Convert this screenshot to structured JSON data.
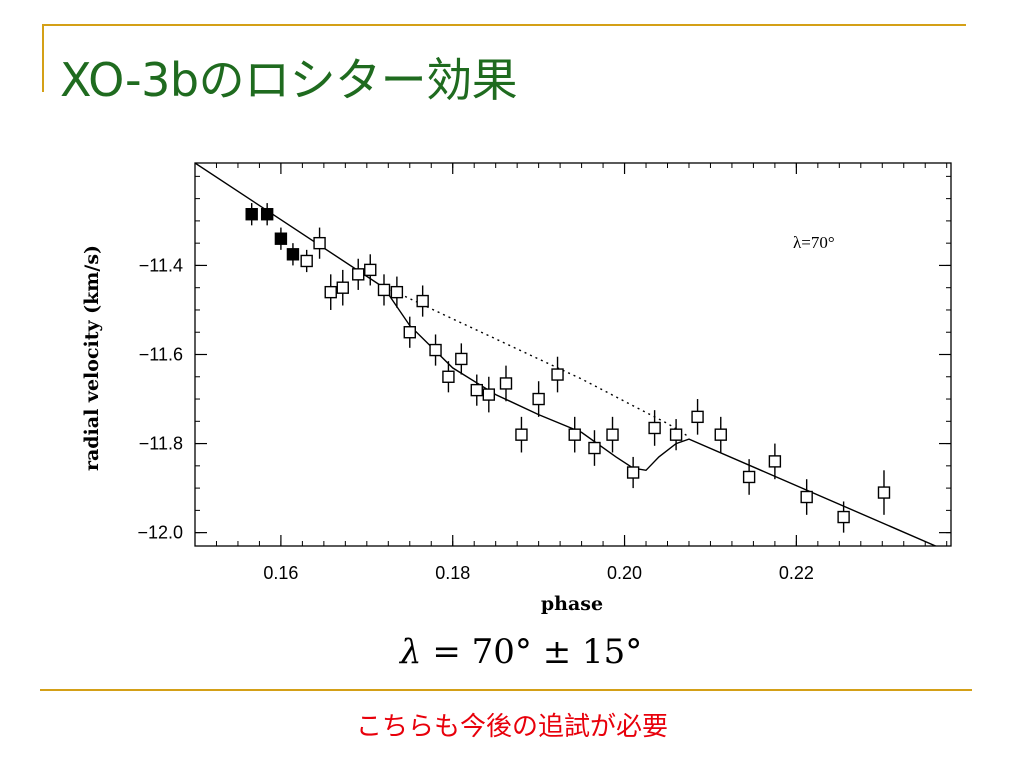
{
  "slide": {
    "title": "XO-3bのロシター効果",
    "equation": {
      "symbol": "λ",
      "text": "= 70° ± 15°"
    },
    "note": "こちらも今後の追試が必要"
  },
  "colors": {
    "title": "#1f6b1f",
    "rule": "#d4a017",
    "note": "#e8000b"
  },
  "chart_data": {
    "type": "scatter",
    "xlabel": "phase",
    "ylabel": "radial velocity (km/s)",
    "xlim": [
      0.15,
      0.238
    ],
    "ylim": [
      -12.03,
      -11.17
    ],
    "xticks": [
      0.16,
      0.18,
      0.2,
      0.22
    ],
    "xtick_labels": [
      "0.16",
      "0.18",
      "0.20",
      "0.22"
    ],
    "yticks": [
      -11.4,
      -11.6,
      -11.8,
      -12.0
    ],
    "ytick_labels": [
      "−11.4",
      "−11.6",
      "−11.8",
      "−12.0"
    ],
    "annotation": "λ=70°",
    "grid": false,
    "series": [
      {
        "marker": "filled-square",
        "points": [
          {
            "x": 0.1566,
            "y": -11.285,
            "err": 0.025
          },
          {
            "x": 0.1584,
            "y": -11.285,
            "err": 0.025
          },
          {
            "x": 0.16,
            "y": -11.34,
            "err": 0.025
          },
          {
            "x": 0.1614,
            "y": -11.375,
            "err": 0.025
          }
        ]
      },
      {
        "marker": "open-square",
        "points": [
          {
            "x": 0.163,
            "y": -11.39,
            "err": 0.025
          },
          {
            "x": 0.1645,
            "y": -11.35,
            "err": 0.035
          },
          {
            "x": 0.1658,
            "y": -11.46,
            "err": 0.04
          },
          {
            "x": 0.1672,
            "y": -11.45,
            "err": 0.04
          },
          {
            "x": 0.169,
            "y": -11.42,
            "err": 0.035
          },
          {
            "x": 0.1704,
            "y": -11.41,
            "err": 0.035
          },
          {
            "x": 0.172,
            "y": -11.455,
            "err": 0.035
          },
          {
            "x": 0.1735,
            "y": -11.46,
            "err": 0.035
          },
          {
            "x": 0.175,
            "y": -11.55,
            "err": 0.035
          },
          {
            "x": 0.1765,
            "y": -11.48,
            "err": 0.035
          },
          {
            "x": 0.178,
            "y": -11.59,
            "err": 0.035
          },
          {
            "x": 0.1795,
            "y": -11.65,
            "err": 0.035
          },
          {
            "x": 0.181,
            "y": -11.61,
            "err": 0.035
          },
          {
            "x": 0.1828,
            "y": -11.68,
            "err": 0.035
          },
          {
            "x": 0.1842,
            "y": -11.69,
            "err": 0.04
          },
          {
            "x": 0.1862,
            "y": -11.665,
            "err": 0.04
          },
          {
            "x": 0.188,
            "y": -11.78,
            "err": 0.04
          },
          {
            "x": 0.19,
            "y": -11.7,
            "err": 0.04
          },
          {
            "x": 0.1922,
            "y": -11.645,
            "err": 0.04
          },
          {
            "x": 0.1942,
            "y": -11.78,
            "err": 0.04
          },
          {
            "x": 0.1965,
            "y": -11.81,
            "err": 0.04
          },
          {
            "x": 0.1986,
            "y": -11.78,
            "err": 0.04
          },
          {
            "x": 0.201,
            "y": -11.865,
            "err": 0.035
          },
          {
            "x": 0.2035,
            "y": -11.765,
            "err": 0.04
          },
          {
            "x": 0.206,
            "y": -11.78,
            "err": 0.035
          },
          {
            "x": 0.2085,
            "y": -11.74,
            "err": 0.04
          },
          {
            "x": 0.2112,
            "y": -11.78,
            "err": 0.04
          },
          {
            "x": 0.2145,
            "y": -11.875,
            "err": 0.04
          },
          {
            "x": 0.2175,
            "y": -11.84,
            "err": 0.04
          },
          {
            "x": 0.2212,
            "y": -11.92,
            "err": 0.04
          },
          {
            "x": 0.2255,
            "y": -11.965,
            "err": 0.035
          },
          {
            "x": 0.2302,
            "y": -11.91,
            "err": 0.05
          }
        ]
      }
    ],
    "model_solid": {
      "x": [
        0.15,
        0.172,
        0.175,
        0.18,
        0.185,
        0.19,
        0.195,
        0.199,
        0.201,
        0.2025,
        0.204,
        0.206,
        0.2075,
        0.238
      ],
      "y": [
        -11.17,
        -11.45,
        -11.535,
        -11.63,
        -11.69,
        -11.735,
        -11.775,
        -11.83,
        -11.855,
        -11.86,
        -11.83,
        -11.8,
        -11.79,
        -12.045
      ]
    },
    "model_dotted": {
      "x": [
        0.1725,
        0.1745,
        0.18,
        0.185,
        0.19,
        0.195,
        0.2,
        0.205,
        0.2075
      ],
      "y": [
        -11.455,
        -11.47,
        -11.52,
        -11.565,
        -11.61,
        -11.655,
        -11.705,
        -11.755,
        -11.785
      ]
    }
  }
}
